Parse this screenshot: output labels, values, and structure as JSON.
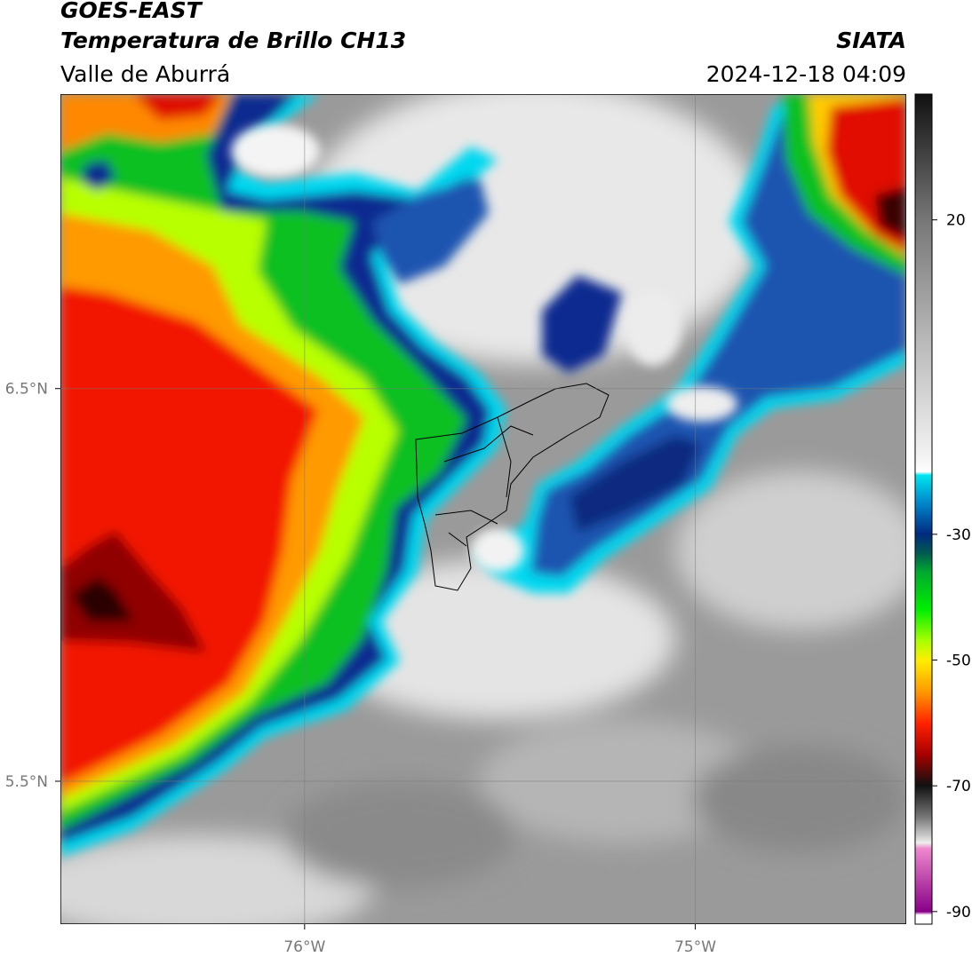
{
  "header": {
    "title": "GOES-EAST",
    "subtitle": "Temperatura de Brillo CH13",
    "region": "Valle de Aburrá",
    "source": "SIATA",
    "datetime": "2024-12-18 04:09"
  },
  "map": {
    "lon_range": [
      -76.625,
      -74.46
    ],
    "lat_range": [
      7.25,
      5.136
    ],
    "lon_ticks": [
      {
        "value": -76,
        "label": "76°W"
      },
      {
        "value": -75,
        "label": "75°W"
      }
    ],
    "lat_ticks": [
      {
        "value": 6.5,
        "label": "6.5°N"
      },
      {
        "value": 5.5,
        "label": "5.5°N"
      }
    ]
  },
  "colorbar": {
    "range": [
      -92,
      40
    ],
    "ticks": [
      20,
      -30,
      -50,
      -70,
      -90
    ]
  }
}
